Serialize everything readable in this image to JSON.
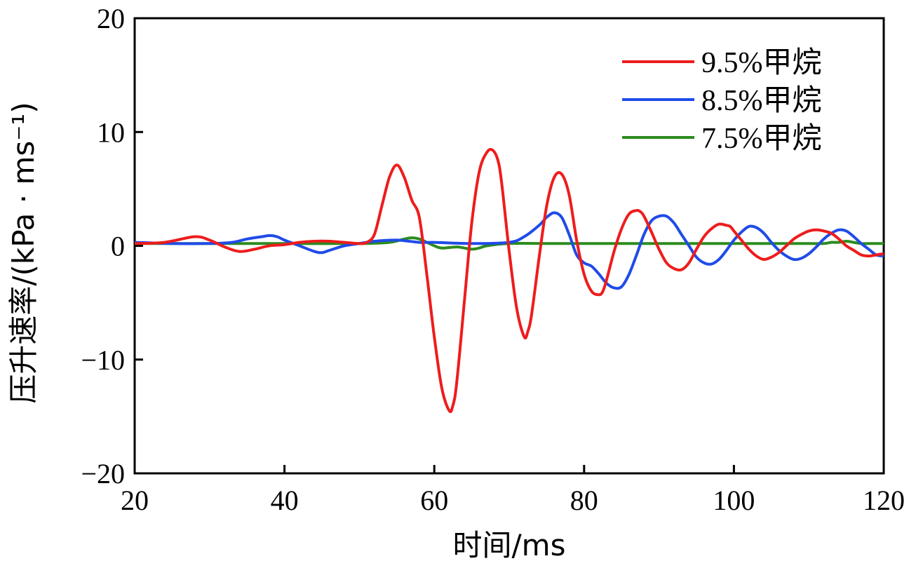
{
  "chart_data": {
    "type": "line",
    "xlabel": "时间/ms",
    "ylabel": "压升速率/(kPa · ms⁻¹)",
    "xlim": [
      20,
      120
    ],
    "ylim": [
      -20,
      20
    ],
    "xticks": [
      20,
      40,
      60,
      80,
      100,
      120
    ],
    "yticks": [
      -20,
      -10,
      0,
      10,
      20
    ],
    "ytick_labels": [
      "−20",
      "−10",
      "0",
      "10",
      "20"
    ],
    "grid": false,
    "legend_position": "top-right",
    "series": [
      {
        "name": "9.5%甲烷",
        "color": "#ee1c1c",
        "x": [
          20,
          24,
          28,
          30,
          32,
          34,
          36,
          38,
          40,
          42,
          44,
          46,
          48,
          50,
          51,
          52,
          53,
          54,
          55,
          56,
          57,
          58,
          59,
          60,
          61,
          62,
          62.5,
          63,
          64,
          65,
          66,
          67,
          67.8,
          68.5,
          69,
          70,
          71,
          72,
          72.5,
          73,
          74,
          75,
          76,
          77,
          78,
          79,
          80,
          81,
          82,
          82.5,
          83,
          84,
          85,
          86,
          87,
          87.5,
          88,
          89,
          90,
          91,
          92,
          93,
          94,
          95,
          96,
          97,
          98,
          99,
          99.5,
          100,
          101,
          102,
          103,
          104,
          105,
          106,
          107,
          108,
          109,
          110,
          111,
          112,
          113,
          114,
          115,
          116,
          117,
          118,
          119,
          120
        ],
        "y": [
          0.2,
          0.3,
          0.8,
          0.5,
          -0.1,
          -0.5,
          -0.3,
          0.0,
          0.1,
          0.3,
          0.4,
          0.4,
          0.3,
          0.2,
          0.3,
          1.0,
          3.5,
          6.0,
          7.1,
          6.0,
          4.0,
          2.5,
          -2.5,
          -8.0,
          -12.5,
          -14.5,
          -14.0,
          -12.0,
          -5.0,
          2.0,
          6.5,
          8.2,
          8.4,
          7.5,
          5.5,
          -0.5,
          -5.5,
          -8.0,
          -7.5,
          -6.0,
          -1.0,
          3.5,
          6.0,
          6.3,
          4.5,
          0.5,
          -2.5,
          -4.0,
          -4.3,
          -4.0,
          -3.0,
          -0.5,
          1.5,
          2.8,
          3.1,
          3.0,
          2.6,
          1.2,
          -0.3,
          -1.5,
          -2.0,
          -2.1,
          -1.5,
          -0.3,
          0.8,
          1.5,
          1.9,
          1.8,
          1.7,
          1.3,
          0.5,
          -0.3,
          -0.9,
          -1.2,
          -1.0,
          -0.6,
          0.0,
          0.6,
          1.0,
          1.3,
          1.4,
          1.3,
          1.1,
          0.6,
          0.0,
          -0.4,
          -0.8,
          -0.9,
          -0.8,
          -0.7
        ]
      },
      {
        "name": "8.5%甲烷",
        "color": "#1f4be8",
        "x": [
          20,
          25,
          30,
          33,
          35,
          37,
          38,
          39,
          40,
          42,
          44,
          45,
          46,
          48,
          50,
          52,
          55,
          58,
          60,
          65,
          70,
          72,
          74,
          75,
          76,
          77,
          78,
          79,
          80,
          81,
          82,
          83,
          84,
          85,
          86,
          87,
          88,
          89,
          90,
          91,
          92,
          93,
          94,
          95,
          96,
          97,
          98,
          99,
          100,
          101,
          102,
          103,
          104,
          105,
          106,
          107,
          108,
          109,
          110,
          111,
          112,
          113,
          114,
          115,
          116,
          117,
          118,
          119,
          120
        ],
        "y": [
          0.3,
          0.2,
          0.2,
          0.3,
          0.6,
          0.8,
          0.9,
          0.8,
          0.5,
          0.0,
          -0.5,
          -0.6,
          -0.4,
          0.0,
          0.2,
          0.4,
          0.5,
          0.3,
          0.3,
          0.2,
          0.3,
          0.8,
          1.8,
          2.5,
          2.9,
          2.5,
          1.0,
          -0.8,
          -1.5,
          -1.8,
          -2.5,
          -3.3,
          -3.7,
          -3.6,
          -2.5,
          -0.8,
          1.0,
          2.2,
          2.6,
          2.6,
          2.0,
          1.0,
          0.0,
          -1.0,
          -1.5,
          -1.6,
          -1.2,
          -0.4,
          0.5,
          1.2,
          1.7,
          1.6,
          1.1,
          0.3,
          -0.4,
          -0.9,
          -1.2,
          -1.1,
          -0.7,
          -0.1,
          0.6,
          1.1,
          1.4,
          1.3,
          0.8,
          0.2,
          -0.3,
          -0.8,
          -0.9
        ]
      },
      {
        "name": "7.5%甲烷",
        "color": "#2b8c1e",
        "x": [
          20,
          30,
          40,
          50,
          54,
          56,
          57,
          58,
          59,
          60,
          61,
          63,
          64,
          65,
          66,
          67,
          70,
          75,
          80,
          85,
          90,
          95,
          100,
          105,
          110,
          112,
          113,
          114,
          115,
          116,
          117,
          118,
          120
        ],
        "y": [
          0.2,
          0.2,
          0.2,
          0.2,
          0.3,
          0.6,
          0.7,
          0.6,
          0.3,
          0.0,
          -0.2,
          -0.1,
          -0.2,
          -0.3,
          -0.2,
          0.0,
          0.2,
          0.2,
          0.2,
          0.2,
          0.2,
          0.2,
          0.2,
          0.2,
          0.2,
          0.2,
          0.3,
          0.3,
          0.4,
          0.3,
          0.2,
          0.2,
          0.2
        ]
      }
    ]
  }
}
